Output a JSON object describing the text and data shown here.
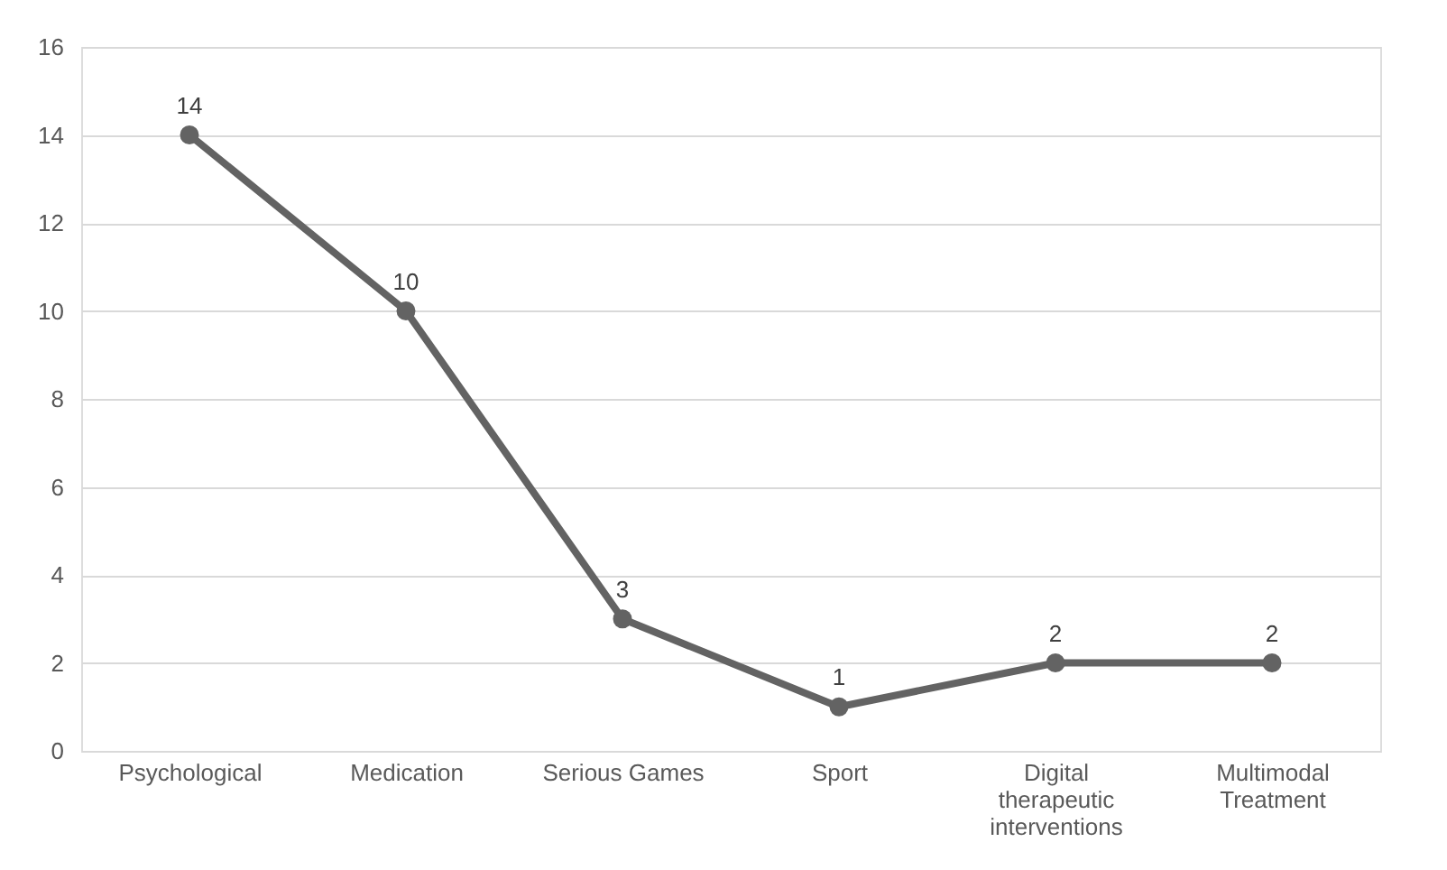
{
  "chart_data": {
    "type": "line",
    "categories": [
      "Psychological",
      "Medication",
      "Serious Games",
      "Sport",
      "Digital therapeutic interventions",
      "Multimodal Treatment"
    ],
    "series": [
      {
        "color": "#636363",
        "values": [
          14,
          10,
          3,
          1,
          2,
          2
        ]
      }
    ],
    "ylim": [
      0,
      16
    ],
    "yticks": [
      0,
      2,
      4,
      6,
      8,
      10,
      12,
      14,
      16
    ],
    "grid": "y",
    "marker": "circle",
    "line_style": "solid",
    "data_labels": true
  }
}
